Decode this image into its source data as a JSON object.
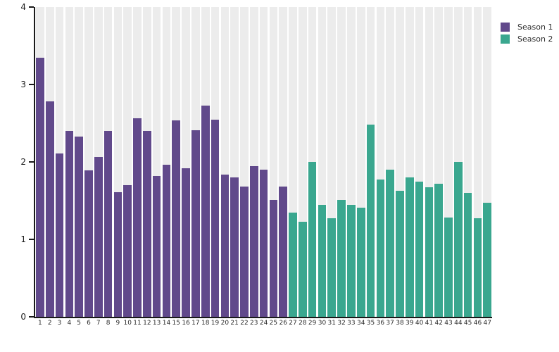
{
  "chart_data": {
    "type": "bar",
    "title": "",
    "xlabel": "",
    "ylabel": "",
    "ylim": [
      0,
      4
    ],
    "yticks": [
      0,
      1,
      2,
      3,
      4
    ],
    "grid": false,
    "background_band_color": "#ececec",
    "axis_color": "#1a1a1a",
    "legend_position": "top-right",
    "x": [
      1,
      2,
      3,
      4,
      5,
      6,
      7,
      8,
      9,
      10,
      11,
      12,
      13,
      14,
      15,
      16,
      17,
      18,
      19,
      20,
      21,
      22,
      23,
      24,
      25,
      26,
      27,
      28,
      29,
      30,
      31,
      32,
      33,
      34,
      35,
      36,
      37,
      38,
      39,
      40,
      41,
      42,
      43,
      44,
      45,
      46,
      47
    ],
    "series": [
      {
        "name": "Season 1",
        "color": "#61498b",
        "values": [
          3.35,
          2.78,
          2.11,
          2.4,
          2.33,
          1.89,
          2.06,
          2.4,
          1.61,
          1.7,
          2.56,
          2.4,
          1.82,
          1.96,
          2.54,
          1.92,
          2.41,
          2.73,
          2.55,
          1.84,
          1.8,
          1.68,
          1.95,
          1.9,
          1.51,
          1.68
        ]
      },
      {
        "name": "Season 2",
        "color": "#3aa78f",
        "values": [
          1.35,
          1.23,
          2.0,
          1.45,
          1.27,
          1.51,
          1.45,
          1.41,
          2.48,
          1.77,
          1.9,
          1.63,
          1.8,
          1.75,
          1.67,
          1.72,
          1.28,
          2.0,
          1.6,
          1.27,
          1.47
        ]
      }
    ]
  }
}
